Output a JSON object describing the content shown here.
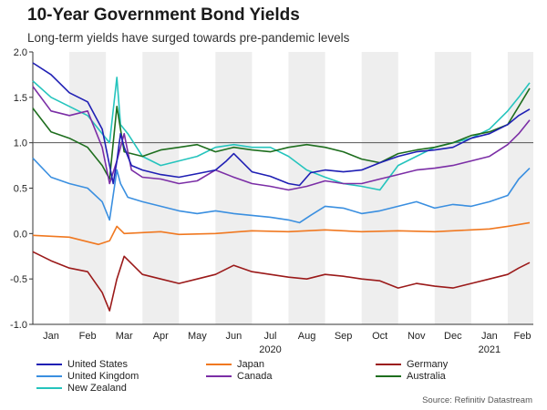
{
  "header": {
    "title": "10-Year Government Bond Yields",
    "subtitle": "Long-term yields have surged towards pre-pandemic levels"
  },
  "source": "Source: Refinitiv Datastream",
  "colors": {
    "us": "#1f1fb4",
    "japan": "#f07820",
    "germany": "#9b1a1a",
    "uk": "#3a8fe0",
    "canada": "#7b2ea6",
    "australia": "#1e6e1e",
    "nz": "#25c4bd",
    "band": "#eeeeee",
    "refline": "#555555"
  },
  "chart_data": {
    "type": "line",
    "title": "10-Year Government Bond Yields",
    "subtitle": "Long-term yields have surged towards pre-pandemic levels",
    "x_range": [
      0,
      13.7
    ],
    "x_unit": "months since 1 Jan 2020",
    "ylim": [
      -1.0,
      2.0
    ],
    "yticks": [
      -1.0,
      -0.5,
      0.0,
      0.5,
      1.0,
      1.5,
      2.0
    ],
    "ytick_labels": [
      "-1.0",
      "-0.5",
      "0.0",
      "0.5",
      "1.0",
      "1.5",
      "2.0"
    ],
    "reference_line": 1.0,
    "month_labels": [
      "Jan",
      "Feb",
      "Mar",
      "Apr",
      "May",
      "Jun",
      "Jul",
      "Aug",
      "Sep",
      "Oct",
      "Nov",
      "Dec",
      "Jan",
      "Feb"
    ],
    "year_labels": [
      {
        "label": "2020",
        "at": 6.5
      },
      {
        "label": "2021",
        "at": 12.5
      }
    ],
    "shaded_months": [
      1,
      3,
      5,
      7,
      9,
      11,
      13
    ],
    "grid": false,
    "legend_position": "bottom",
    "series": [
      {
        "name": "United States",
        "key": "us",
        "x": [
          0,
          0.5,
          1,
          1.5,
          1.9,
          2.1,
          2.2,
          2.3,
          2.4,
          2.5,
          2.7,
          3,
          3.5,
          4,
          4.5,
          5,
          5.3,
          5.5,
          6,
          6.5,
          7,
          7.3,
          7.6,
          8,
          8.5,
          9,
          9.5,
          10,
          10.5,
          11,
          11.5,
          12,
          12.5,
          13,
          13.3,
          13.6
        ],
        "y": [
          1.88,
          1.75,
          1.55,
          1.45,
          1.15,
          0.75,
          0.55,
          0.8,
          1.1,
          0.95,
          0.75,
          0.7,
          0.65,
          0.62,
          0.66,
          0.7,
          0.8,
          0.88,
          0.68,
          0.63,
          0.55,
          0.53,
          0.67,
          0.7,
          0.68,
          0.7,
          0.78,
          0.85,
          0.9,
          0.92,
          0.95,
          1.05,
          1.1,
          1.2,
          1.3,
          1.37
        ]
      },
      {
        "name": "Japan",
        "key": "japan",
        "x": [
          0,
          1,
          1.8,
          2.1,
          2.3,
          2.5,
          3,
          3.5,
          4,
          5,
          6,
          7,
          8,
          9,
          10,
          11,
          12,
          12.5,
          13,
          13.6
        ],
        "y": [
          -0.02,
          -0.04,
          -0.12,
          -0.08,
          0.08,
          0.0,
          0.01,
          0.02,
          -0.01,
          0.0,
          0.03,
          0.02,
          0.04,
          0.02,
          0.03,
          0.02,
          0.04,
          0.05,
          0.08,
          0.12
        ]
      },
      {
        "name": "Germany",
        "key": "germany",
        "x": [
          0,
          0.5,
          1,
          1.5,
          1.9,
          2.1,
          2.3,
          2.5,
          3,
          3.5,
          4,
          4.5,
          5,
          5.5,
          6,
          6.5,
          7,
          7.5,
          8,
          8.5,
          9,
          9.5,
          10,
          10.5,
          11,
          11.5,
          12,
          12.5,
          13,
          13.3,
          13.6
        ],
        "y": [
          -0.2,
          -0.3,
          -0.38,
          -0.42,
          -0.65,
          -0.85,
          -0.5,
          -0.25,
          -0.45,
          -0.5,
          -0.55,
          -0.5,
          -0.45,
          -0.35,
          -0.42,
          -0.45,
          -0.48,
          -0.5,
          -0.45,
          -0.47,
          -0.5,
          -0.52,
          -0.6,
          -0.55,
          -0.58,
          -0.6,
          -0.55,
          -0.5,
          -0.45,
          -0.38,
          -0.32
        ]
      },
      {
        "name": "United Kingdom",
        "key": "uk",
        "x": [
          0,
          0.5,
          1,
          1.5,
          1.9,
          2.1,
          2.3,
          2.4,
          2.6,
          3,
          3.5,
          4,
          4.5,
          5,
          5.5,
          6,
          6.5,
          7,
          7.3,
          7.6,
          8,
          8.5,
          9,
          9.5,
          10,
          10.5,
          11,
          11.5,
          12,
          12.5,
          13,
          13.3,
          13.6
        ],
        "y": [
          0.83,
          0.62,
          0.55,
          0.5,
          0.35,
          0.15,
          0.7,
          0.55,
          0.4,
          0.35,
          0.3,
          0.25,
          0.22,
          0.25,
          0.22,
          0.2,
          0.18,
          0.15,
          0.12,
          0.2,
          0.3,
          0.28,
          0.22,
          0.25,
          0.3,
          0.35,
          0.28,
          0.32,
          0.3,
          0.35,
          0.42,
          0.6,
          0.72
        ]
      },
      {
        "name": "Canada",
        "key": "canada",
        "x": [
          0,
          0.5,
          1,
          1.5,
          1.9,
          2.1,
          2.3,
          2.5,
          2.7,
          3,
          3.5,
          4,
          4.5,
          5,
          5.5,
          6,
          6.5,
          7,
          7.5,
          8,
          8.5,
          9,
          9.5,
          10,
          10.5,
          11,
          11.5,
          12,
          12.5,
          13,
          13.3,
          13.6
        ],
        "y": [
          1.62,
          1.35,
          1.3,
          1.35,
          0.95,
          0.55,
          0.8,
          1.1,
          0.7,
          0.62,
          0.6,
          0.55,
          0.58,
          0.7,
          0.62,
          0.55,
          0.52,
          0.48,
          0.52,
          0.58,
          0.55,
          0.55,
          0.6,
          0.65,
          0.7,
          0.72,
          0.75,
          0.8,
          0.85,
          0.98,
          1.1,
          1.25
        ]
      },
      {
        "name": "Australia",
        "key": "australia",
        "x": [
          0,
          0.5,
          1,
          1.5,
          1.9,
          2.1,
          2.3,
          2.5,
          3,
          3.5,
          4,
          4.5,
          5,
          5.5,
          6,
          6.5,
          7,
          7.5,
          8,
          8.5,
          9,
          9.5,
          10,
          10.5,
          11,
          11.5,
          12,
          12.5,
          13,
          13.3,
          13.6
        ],
        "y": [
          1.38,
          1.12,
          1.05,
          0.95,
          0.75,
          0.6,
          1.4,
          0.9,
          0.85,
          0.92,
          0.95,
          0.98,
          0.9,
          0.95,
          0.92,
          0.9,
          0.95,
          0.98,
          0.95,
          0.9,
          0.82,
          0.78,
          0.88,
          0.92,
          0.95,
          1.0,
          1.08,
          1.12,
          1.2,
          1.4,
          1.6
        ]
      },
      {
        "name": "New Zealand",
        "key": "nz",
        "x": [
          0,
          0.5,
          1,
          1.5,
          1.9,
          2.1,
          2.3,
          2.4,
          2.6,
          3,
          3.5,
          4,
          4.5,
          5,
          5.5,
          6,
          6.5,
          7,
          7.5,
          8,
          8.5,
          9,
          9.5,
          10,
          10.5,
          11,
          11.5,
          12,
          12.5,
          13,
          13.3,
          13.6
        ],
        "y": [
          1.68,
          1.5,
          1.4,
          1.3,
          1.1,
          1.0,
          1.72,
          1.2,
          1.1,
          0.85,
          0.75,
          0.8,
          0.85,
          0.95,
          0.98,
          0.95,
          0.95,
          0.85,
          0.7,
          0.62,
          0.55,
          0.52,
          0.48,
          0.75,
          0.85,
          0.95,
          1.0,
          1.05,
          1.15,
          1.35,
          1.5,
          1.66
        ]
      }
    ]
  },
  "legend": {
    "items": [
      {
        "label": "United States",
        "key": "us"
      },
      {
        "label": "Japan",
        "key": "japan"
      },
      {
        "label": "Germany",
        "key": "germany"
      },
      {
        "label": "United Kingdom",
        "key": "uk"
      },
      {
        "label": "Canada",
        "key": "canada"
      },
      {
        "label": "Australia",
        "key": "australia"
      },
      {
        "label": "New Zealand",
        "key": "nz"
      }
    ]
  }
}
